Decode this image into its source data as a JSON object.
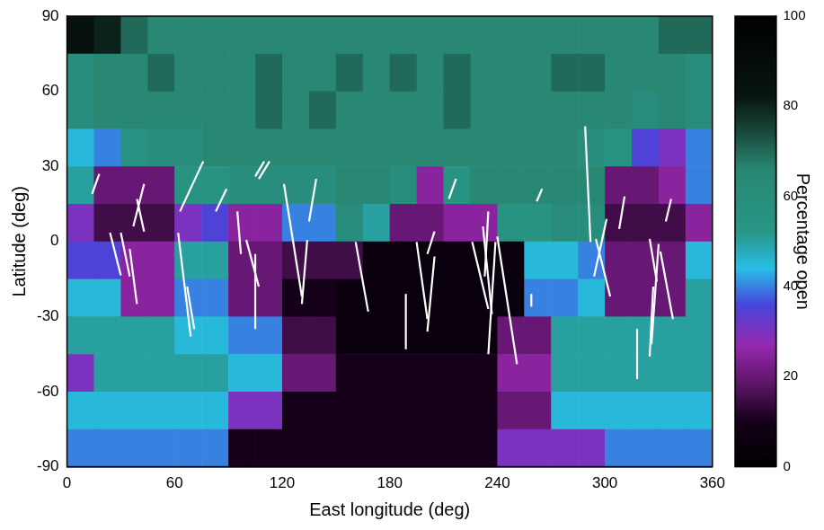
{
  "chart_data": {
    "type": "heatmap",
    "x_label": "East longitude (deg)",
    "y_label": "Latitude (deg)",
    "xlim": [
      0,
      360
    ],
    "xticks": [
      0,
      60,
      120,
      180,
      240,
      300,
      360
    ],
    "ylim": [
      -90,
      90
    ],
    "yticks": [
      -90,
      -60,
      -30,
      0,
      30,
      60,
      90
    ],
    "grid": false,
    "heatmap": {
      "x": [
        7.5,
        22.5,
        37.5,
        52.5,
        67.5,
        82.5,
        97.5,
        112.5,
        127.5,
        142.5,
        157.5,
        172.5,
        187.5,
        202.5,
        217.5,
        232.5,
        247.5,
        262.5,
        277.5,
        292.5,
        307.5,
        322.5,
        337.5,
        352.5
      ],
      "y": [
        82.5,
        67.5,
        52.5,
        37.5,
        22.5,
        7.5,
        -7.5,
        -22.5,
        -37.5,
        -52.5,
        -67.5,
        -82.5
      ],
      "values": [
        [
          85,
          80,
          70,
          65,
          65,
          65,
          65,
          65,
          65,
          65,
          65,
          65,
          65,
          65,
          65,
          65,
          65,
          65,
          65,
          65,
          65,
          65,
          70,
          70
        ],
        [
          60,
          65,
          65,
          70,
          65,
          65,
          65,
          70,
          65,
          65,
          70,
          65,
          70,
          65,
          70,
          65,
          65,
          65,
          70,
          70,
          65,
          65,
          65,
          60
        ],
        [
          60,
          65,
          65,
          65,
          65,
          65,
          65,
          70,
          65,
          70,
          65,
          65,
          65,
          65,
          70,
          65,
          65,
          65,
          65,
          65,
          65,
          60,
          65,
          60
        ],
        [
          45,
          40,
          55,
          60,
          60,
          65,
          65,
          65,
          65,
          65,
          65,
          65,
          65,
          65,
          65,
          65,
          65,
          65,
          65,
          60,
          55,
          35,
          30,
          40
        ],
        [
          50,
          20,
          20,
          20,
          55,
          55,
          60,
          60,
          60,
          60,
          65,
          65,
          60,
          25,
          55,
          65,
          65,
          65,
          65,
          65,
          20,
          20,
          25,
          40
        ],
        [
          30,
          15,
          15,
          15,
          30,
          35,
          25,
          25,
          40,
          40,
          60,
          50,
          20,
          20,
          25,
          25,
          55,
          55,
          60,
          60,
          15,
          15,
          15,
          25
        ],
        [
          35,
          35,
          25,
          25,
          50,
          50,
          20,
          20,
          15,
          15,
          15,
          5,
          5,
          5,
          5,
          5,
          5,
          45,
          45,
          40,
          20,
          20,
          20,
          45
        ],
        [
          45,
          45,
          25,
          25,
          40,
          40,
          20,
          20,
          10,
          10,
          5,
          5,
          5,
          5,
          5,
          5,
          5,
          40,
          40,
          45,
          20,
          20,
          20,
          50
        ],
        [
          50,
          50,
          50,
          50,
          45,
          45,
          40,
          40,
          15,
          15,
          5,
          5,
          5,
          5,
          5,
          5,
          20,
          20,
          50,
          50,
          50,
          50,
          50,
          50
        ],
        [
          30,
          50,
          50,
          50,
          50,
          50,
          45,
          45,
          20,
          20,
          10,
          10,
          10,
          10,
          10,
          10,
          25,
          25,
          50,
          50,
          50,
          50,
          50,
          50
        ],
        [
          45,
          45,
          45,
          45,
          45,
          45,
          30,
          30,
          10,
          10,
          10,
          10,
          10,
          10,
          10,
          10,
          20,
          20,
          45,
          45,
          45,
          45,
          45,
          45
        ],
        [
          40,
          40,
          40,
          40,
          40,
          40,
          10,
          10,
          10,
          10,
          10,
          10,
          10,
          10,
          10,
          10,
          30,
          30,
          30,
          30,
          40,
          40,
          40,
          40
        ]
      ]
    },
    "colorbar": {
      "label": "Percentage open",
      "range": [
        0,
        100
      ],
      "ticks": [
        0,
        20,
        40,
        60,
        80,
        100
      ]
    },
    "series": [
      {
        "type": "line",
        "color": "#ffffff",
        "segments": [
          [
            [
              18,
              27
            ],
            [
              14,
              19
            ]
          ],
          [
            [
              24,
              3.5
            ],
            [
              30,
              -13.5
            ]
          ],
          [
            [
              30,
              3.5
            ],
            [
              35,
              -14
            ]
          ],
          [
            [
              39,
              17
            ],
            [
              43,
              4
            ]
          ],
          [
            [
              43,
              23
            ],
            [
              37,
              6
            ]
          ],
          [
            [
              35,
              -3
            ],
            [
              39,
              -25
            ]
          ],
          [
            [
              76,
              32
            ],
            [
              63,
              12
            ]
          ],
          [
            [
              89,
              21
            ],
            [
              83,
              12
            ]
          ],
          [
            [
              62,
              3.5
            ],
            [
              69,
              -38
            ]
          ],
          [
            [
              67,
              -18
            ],
            [
              71,
              -35
            ]
          ],
          [
            [
              110,
              32
            ],
            [
              105,
              26
            ]
          ],
          [
            [
              113,
              32
            ],
            [
              107,
              25
            ]
          ],
          [
            [
              95,
              12
            ],
            [
              97,
              -5
            ]
          ],
          [
            [
              100,
              0.6
            ],
            [
              107,
              -18
            ]
          ],
          [
            [
              105,
              -5
            ],
            [
              105,
              -35
            ]
          ],
          [
            [
              121,
              23
            ],
            [
              131,
              -22
            ]
          ],
          [
            [
              134,
              0.6
            ],
            [
              131,
              -25
            ]
          ],
          [
            [
              139,
              25
            ],
            [
              135,
              8
            ]
          ],
          [
            [
              161,
              -0.2
            ],
            [
              168,
              -28
            ]
          ],
          [
            [
              195,
              -0.2
            ],
            [
              201,
              -31
            ]
          ],
          [
            [
              189,
              -21
            ],
            [
              189,
              -43
            ]
          ],
          [
            [
              205,
              -6
            ],
            [
              201,
              -36
            ]
          ],
          [
            [
              205,
              4
            ],
            [
              201,
              -5
            ]
          ],
          [
            [
              217,
              25
            ],
            [
              213,
              17
            ]
          ],
          [
            [
              226,
              -0.2
            ],
            [
              235,
              -27
            ]
          ],
          [
            [
              232,
              6
            ],
            [
              237,
              -29
            ]
          ],
          [
            [
              235,
              12
            ],
            [
              233,
              -14
            ]
          ],
          [
            [
              239,
              -0.2
            ],
            [
              235,
              -45
            ]
          ],
          [
            [
              240,
              2
            ],
            [
              251,
              -49
            ]
          ],
          [
            [
              265,
              21
            ],
            [
              262,
              16
            ]
          ],
          [
            [
              259,
              -21
            ],
            [
              259,
              -26
            ]
          ],
          [
            [
              289,
              46
            ],
            [
              292,
              -0.2
            ]
          ],
          [
            [
              301,
              9
            ],
            [
              294,
              -14
            ]
          ],
          [
            [
              295,
              1
            ],
            [
              303,
              -22
            ]
          ],
          [
            [
              311,
              18
            ],
            [
              308,
              5
            ]
          ],
          [
            [
              325,
              1
            ],
            [
              329,
              -16
            ]
          ],
          [
            [
              331,
              -4
            ],
            [
              338,
              -31
            ]
          ],
          [
            [
              327,
              -18
            ],
            [
              325,
              -46
            ]
          ],
          [
            [
              330,
              -1
            ],
            [
              326,
              -41
            ]
          ],
          [
            [
              318,
              -35
            ],
            [
              318,
              -55
            ]
          ],
          [
            [
              337,
              17
            ],
            [
              334,
              8
            ]
          ]
        ]
      }
    ]
  }
}
